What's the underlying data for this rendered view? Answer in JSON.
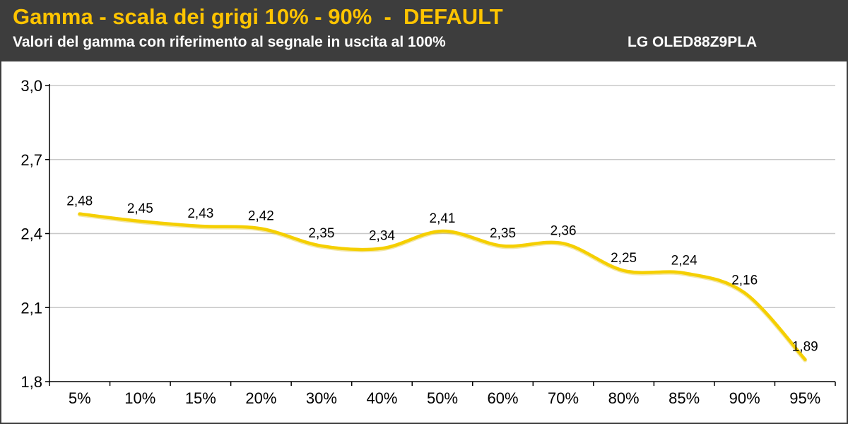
{
  "header": {
    "title": "Gamma - scala dei grigi 10% - 90%  -  DEFAULT",
    "subtitle": "Valori del gamma con riferimento al segnale in uscita al 100%",
    "model": "LG OLED88Z9PLA"
  },
  "colors": {
    "header_bg": "#3d3d3d",
    "title": "#ffc400",
    "subtitle": "#ffffff",
    "line": "#f5cf00",
    "grid": "#c8c8c8"
  },
  "chart_data": {
    "type": "line",
    "title": "Gamma - scala dei grigi 10% - 90%  -  DEFAULT",
    "subtitle": "Valori del gamma con riferimento al segnale in uscita al 100%",
    "xlabel": "",
    "ylabel": "",
    "categories": [
      "5%",
      "10%",
      "15%",
      "20%",
      "30%",
      "40%",
      "50%",
      "60%",
      "70%",
      "80%",
      "85%",
      "90%",
      "95%"
    ],
    "values": [
      2.48,
      2.45,
      2.43,
      2.42,
      2.35,
      2.34,
      2.41,
      2.35,
      2.36,
      2.25,
      2.24,
      2.16,
      1.89
    ],
    "data_labels": [
      "2,48",
      "2,45",
      "2,43",
      "2,42",
      "2,35",
      "2,34",
      "2,41",
      "2,35",
      "2,36",
      "2,25",
      "2,24",
      "2,16",
      "1,89"
    ],
    "ylim": [
      1.8,
      3.0
    ],
    "yticks": [
      1.8,
      2.1,
      2.4,
      2.7,
      3.0
    ],
    "ytick_labels": [
      "1,8",
      "2,1",
      "2,4",
      "2,7",
      "3,0"
    ],
    "grid": true,
    "smooth": true,
    "legend": "none"
  }
}
